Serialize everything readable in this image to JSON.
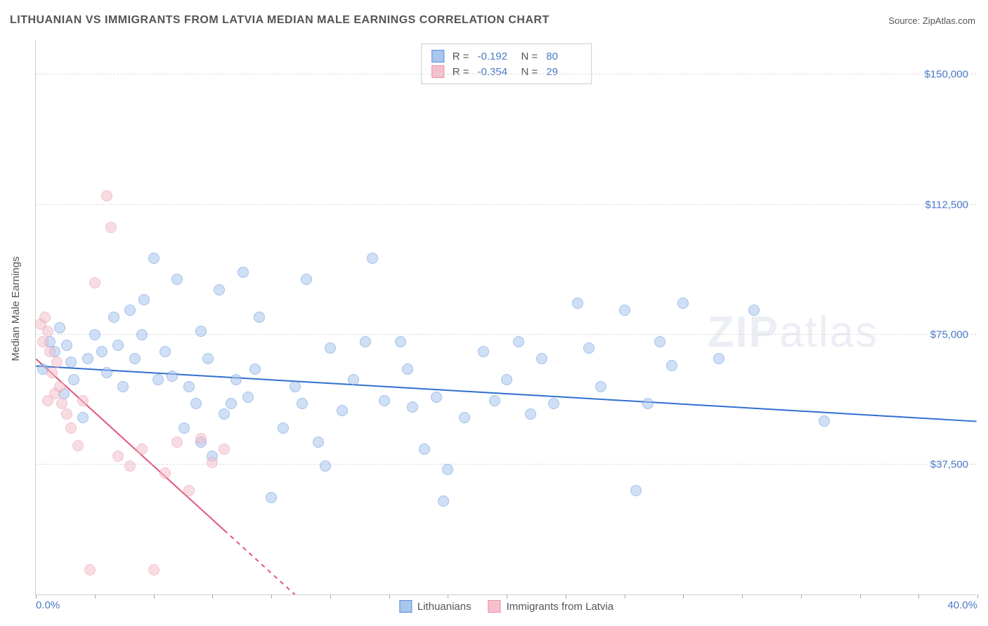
{
  "title": "LITHUANIAN VS IMMIGRANTS FROM LATVIA MEDIAN MALE EARNINGS CORRELATION CHART",
  "source_label": "Source:",
  "source_value": "ZipAtlas.com",
  "y_axis_label": "Median Male Earnings",
  "watermark_bold": "ZIP",
  "watermark_rest": "atlas",
  "chart": {
    "type": "scatter",
    "xlim": [
      0,
      40
    ],
    "ylim": [
      0,
      160000
    ],
    "x_tick_labels": {
      "0": "0.0%",
      "40": "40.0%"
    },
    "x_tick_positions": [
      0,
      2.5,
      5,
      7.5,
      10,
      12.5,
      15,
      17.5,
      20,
      22.5,
      25,
      27.5,
      30,
      32.5,
      35,
      37.5,
      40
    ],
    "y_gridlines": [
      {
        "value": 37500,
        "label": "$37,500"
      },
      {
        "value": 75000,
        "label": "$75,000"
      },
      {
        "value": 112500,
        "label": "$112,500"
      },
      {
        "value": 150000,
        "label": "$150,000"
      }
    ],
    "background_color": "#ffffff",
    "grid_color": "#dddddd",
    "axis_color": "#cccccc",
    "label_color": "#4a7ac7",
    "title_color": "#555555",
    "marker_radius": 8,
    "marker_opacity": 0.55,
    "series": [
      {
        "name": "Lithuanians",
        "color_fill": "#a8c6ee",
        "color_stroke": "#5b8fd6",
        "r_value": "-0.192",
        "n_value": "80",
        "trend": {
          "x1": 0,
          "y1": 66000,
          "x2": 40,
          "y2": 50000,
          "color": "#2f6fd0",
          "width": 2,
          "dash_after_x": 40
        },
        "points": [
          [
            0.3,
            65000
          ],
          [
            0.6,
            73000
          ],
          [
            0.8,
            70000
          ],
          [
            1.0,
            77000
          ],
          [
            1.2,
            58000
          ],
          [
            1.3,
            72000
          ],
          [
            1.5,
            67000
          ],
          [
            1.6,
            62000
          ],
          [
            2.0,
            51000
          ],
          [
            2.2,
            68000
          ],
          [
            2.5,
            75000
          ],
          [
            2.8,
            70000
          ],
          [
            3.0,
            64000
          ],
          [
            3.3,
            80000
          ],
          [
            3.5,
            72000
          ],
          [
            3.7,
            60000
          ],
          [
            4.0,
            82000
          ],
          [
            4.2,
            68000
          ],
          [
            4.5,
            75000
          ],
          [
            4.6,
            85000
          ],
          [
            5.0,
            97000
          ],
          [
            5.2,
            62000
          ],
          [
            5.5,
            70000
          ],
          [
            5.8,
            63000
          ],
          [
            6.0,
            91000
          ],
          [
            6.3,
            48000
          ],
          [
            6.5,
            60000
          ],
          [
            6.8,
            55000
          ],
          [
            7.0,
            76000
          ],
          [
            7.3,
            68000
          ],
          [
            7.5,
            40000
          ],
          [
            7.8,
            88000
          ],
          [
            8.0,
            52000
          ],
          [
            8.3,
            55000
          ],
          [
            8.5,
            62000
          ],
          [
            8.8,
            93000
          ],
          [
            9.0,
            57000
          ],
          [
            9.3,
            65000
          ],
          [
            9.5,
            80000
          ],
          [
            10.0,
            28000
          ],
          [
            10.5,
            48000
          ],
          [
            11.0,
            60000
          ],
          [
            11.3,
            55000
          ],
          [
            11.5,
            91000
          ],
          [
            12.0,
            44000
          ],
          [
            12.3,
            37000
          ],
          [
            12.5,
            71000
          ],
          [
            13.0,
            53000
          ],
          [
            13.5,
            62000
          ],
          [
            14.0,
            73000
          ],
          [
            14.3,
            97000
          ],
          [
            14.8,
            56000
          ],
          [
            15.5,
            73000
          ],
          [
            15.8,
            65000
          ],
          [
            16.0,
            54000
          ],
          [
            16.5,
            42000
          ],
          [
            17.0,
            57000
          ],
          [
            17.3,
            27000
          ],
          [
            17.5,
            36000
          ],
          [
            18.2,
            51000
          ],
          [
            19.0,
            70000
          ],
          [
            19.5,
            56000
          ],
          [
            20.0,
            62000
          ],
          [
            20.5,
            73000
          ],
          [
            21.0,
            52000
          ],
          [
            21.5,
            68000
          ],
          [
            22.0,
            55000
          ],
          [
            23.0,
            84000
          ],
          [
            23.5,
            71000
          ],
          [
            24.0,
            60000
          ],
          [
            25.0,
            82000
          ],
          [
            25.5,
            30000
          ],
          [
            26.0,
            55000
          ],
          [
            27.0,
            66000
          ],
          [
            27.5,
            84000
          ],
          [
            29.0,
            68000
          ],
          [
            30.5,
            82000
          ],
          [
            33.5,
            50000
          ],
          [
            26.5,
            73000
          ],
          [
            7.0,
            44000
          ]
        ]
      },
      {
        "name": "Immigrants from Latvia",
        "color_fill": "#f4c0cc",
        "color_stroke": "#e891a8",
        "r_value": "-0.354",
        "n_value": "29",
        "trend": {
          "x1": 0,
          "y1": 68000,
          "x2": 11,
          "y2": 0,
          "color": "#e0557a",
          "width": 2,
          "dash_after_x": 8
        },
        "points": [
          [
            0.2,
            78000
          ],
          [
            0.3,
            73000
          ],
          [
            0.4,
            80000
          ],
          [
            0.5,
            76000
          ],
          [
            0.6,
            70000
          ],
          [
            0.7,
            64000
          ],
          [
            0.8,
            58000
          ],
          [
            0.9,
            67000
          ],
          [
            1.0,
            60000
          ],
          [
            1.1,
            55000
          ],
          [
            1.3,
            52000
          ],
          [
            1.5,
            48000
          ],
          [
            1.8,
            43000
          ],
          [
            2.0,
            56000
          ],
          [
            2.3,
            7000
          ],
          [
            2.5,
            90000
          ],
          [
            3.0,
            115000
          ],
          [
            3.2,
            106000
          ],
          [
            3.5,
            40000
          ],
          [
            4.0,
            37000
          ],
          [
            4.5,
            42000
          ],
          [
            5.0,
            7000
          ],
          [
            5.5,
            35000
          ],
          [
            6.0,
            44000
          ],
          [
            6.5,
            30000
          ],
          [
            7.0,
            45000
          ],
          [
            7.5,
            38000
          ],
          [
            8.0,
            42000
          ],
          [
            0.5,
            56000
          ]
        ]
      }
    ]
  }
}
